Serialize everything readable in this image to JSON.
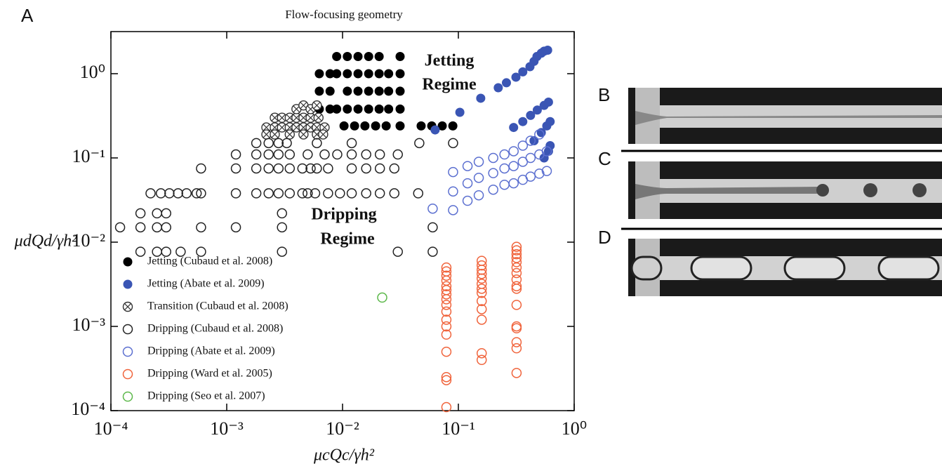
{
  "figure": {
    "panel_labels": [
      "A",
      "B",
      "C",
      "D"
    ]
  },
  "chart_data": {
    "type": "scatter",
    "title": "Flow-focusing geometry",
    "x_label": "μcQc/γh²",
    "y_label": "μdQd/γh²",
    "log_x": true,
    "log_y": true,
    "legend": "lower left",
    "annotations": [
      "Jetting",
      "Regime",
      "Dripping",
      "Regime"
    ],
    "xlim": [
      0.0001,
      1
    ],
    "ylim": [
      0.0001,
      3.16
    ],
    "xticks": [
      {
        "value": 0.0001,
        "label": "10⁻⁴"
      },
      {
        "value": 0.001,
        "label": "10⁻³"
      },
      {
        "value": 0.01,
        "label": "10⁻²"
      },
      {
        "value": 0.1,
        "label": "10⁻¹"
      },
      {
        "value": 1,
        "label": "10⁰"
      }
    ],
    "yticks": [
      {
        "value": 0.0001,
        "label": "10⁻⁴"
      },
      {
        "value": 0.001,
        "label": "10⁻³"
      },
      {
        "value": 0.01,
        "label": "10⁻²"
      },
      {
        "value": 0.1,
        "label": "10⁻¹"
      },
      {
        "value": 1,
        "label": "10⁰"
      }
    ],
    "series": [
      {
        "name": "Jetting (Cubaud et al. 2008)",
        "color": "#000000",
        "marker": "filled",
        "x": [
          0.0089,
          0.011,
          0.0136,
          0.0168,
          0.0207,
          0.0314,
          0.0063,
          0.0078,
          0.0089,
          0.011,
          0.0136,
          0.0168,
          0.0207,
          0.025,
          0.0314,
          0.0063,
          0.0078,
          0.011,
          0.0136,
          0.0168,
          0.0207,
          0.025,
          0.0314,
          0.0063,
          0.0078,
          0.0089,
          0.011,
          0.0136,
          0.0168,
          0.0207,
          0.025,
          0.0314,
          0.0103,
          0.0127,
          0.0156,
          0.0193,
          0.0238,
          0.0314,
          0.0477,
          0.0589,
          0.0726,
          0.0896
        ],
        "values": [
          1.6,
          1.6,
          1.6,
          1.6,
          1.6,
          1.6,
          1.0,
          1.0,
          1.0,
          1.0,
          1.0,
          1.0,
          1.0,
          1.0,
          1.0,
          0.62,
          0.62,
          0.62,
          0.62,
          0.62,
          0.62,
          0.62,
          0.62,
          0.38,
          0.38,
          0.38,
          0.38,
          0.38,
          0.38,
          0.38,
          0.38,
          0.38,
          0.24,
          0.24,
          0.24,
          0.24,
          0.24,
          0.24,
          0.24,
          0.24,
          0.24,
          0.24
        ]
      },
      {
        "name": "Jetting (Abate et al. 2009)",
        "color": "#3a55b4",
        "marker": "filled",
        "x": [
          0.063,
          0.103,
          0.156,
          0.221,
          0.26,
          0.314,
          0.36,
          0.415,
          0.45,
          0.477,
          0.52,
          0.55,
          0.59,
          0.3,
          0.36,
          0.42,
          0.48,
          0.55,
          0.6,
          0.45,
          0.52,
          0.58,
          0.62,
          0.55,
          0.6,
          0.62
        ],
        "values": [
          0.215,
          0.348,
          0.511,
          0.681,
          0.78,
          0.909,
          1.05,
          1.21,
          1.4,
          1.6,
          1.75,
          1.85,
          1.9,
          0.23,
          0.27,
          0.32,
          0.37,
          0.42,
          0.46,
          0.16,
          0.2,
          0.24,
          0.27,
          0.1,
          0.12,
          0.14
        ]
      },
      {
        "name": "Transition (Cubaud et al. 2008)",
        "color": "#333333",
        "marker": "crossed",
        "x": [
          0.0022,
          0.0026,
          0.003,
          0.0035,
          0.004,
          0.0046,
          0.0053,
          0.006,
          0.007,
          0.0026,
          0.003,
          0.0035,
          0.004,
          0.0046,
          0.0053,
          0.0062,
          0.0022,
          0.0026,
          0.0035,
          0.0046,
          0.006,
          0.0068,
          0.004,
          0.0046,
          0.0053,
          0.006
        ],
        "values": [
          0.23,
          0.23,
          0.23,
          0.23,
          0.23,
          0.23,
          0.23,
          0.23,
          0.23,
          0.3,
          0.3,
          0.3,
          0.3,
          0.3,
          0.3,
          0.3,
          0.19,
          0.19,
          0.19,
          0.19,
          0.19,
          0.19,
          0.38,
          0.42,
          0.38,
          0.42
        ]
      },
      {
        "name": "Dripping (Cubaud et al. 2008)",
        "color": "#222222",
        "marker": "open",
        "x": [
          0.00018,
          0.00025,
          0.0003,
          0.0004,
          0.0006,
          0.003,
          0.03,
          0.06,
          0.00012,
          0.00018,
          0.00025,
          0.0003,
          0.0006,
          0.0012,
          0.003,
          0.06,
          0.00018,
          0.00025,
          0.0003,
          0.003,
          0.00022,
          0.00027,
          0.00032,
          0.00038,
          0.00045,
          0.00055,
          0.0006,
          0.0012,
          0.0018,
          0.0023,
          0.0028,
          0.0035,
          0.0045,
          0.005,
          0.0058,
          0.0075,
          0.0095,
          0.012,
          0.016,
          0.021,
          0.028,
          0.045,
          0.0006,
          0.0012,
          0.0018,
          0.0023,
          0.0028,
          0.0035,
          0.0045,
          0.0053,
          0.006,
          0.0075,
          0.012,
          0.016,
          0.021,
          0.028,
          0.0012,
          0.0018,
          0.0023,
          0.0028,
          0.0035,
          0.005,
          0.007,
          0.009,
          0.012,
          0.016,
          0.021,
          0.03,
          0.0018,
          0.0023,
          0.0028,
          0.0033,
          0.006,
          0.012,
          0.046,
          0.09
        ],
        "values": [
          0.0077,
          0.0077,
          0.0077,
          0.0077,
          0.0077,
          0.0077,
          0.0077,
          0.0077,
          0.015,
          0.015,
          0.015,
          0.015,
          0.015,
          0.015,
          0.015,
          0.015,
          0.022,
          0.022,
          0.022,
          0.022,
          0.038,
          0.038,
          0.038,
          0.038,
          0.038,
          0.038,
          0.038,
          0.038,
          0.038,
          0.038,
          0.038,
          0.038,
          0.038,
          0.038,
          0.038,
          0.038,
          0.038,
          0.038,
          0.038,
          0.038,
          0.038,
          0.038,
          0.075,
          0.075,
          0.075,
          0.075,
          0.075,
          0.075,
          0.075,
          0.075,
          0.075,
          0.075,
          0.075,
          0.075,
          0.075,
          0.075,
          0.11,
          0.11,
          0.11,
          0.11,
          0.11,
          0.11,
          0.11,
          0.11,
          0.11,
          0.11,
          0.11,
          0.11,
          0.15,
          0.15,
          0.15,
          0.15,
          0.15,
          0.15,
          0.15,
          0.15
        ]
      },
      {
        "name": "Dripping (Abate et al. 2009)",
        "color": "#5b6fd0",
        "marker": "open",
        "x": [
          0.06,
          0.09,
          0.09,
          0.09,
          0.12,
          0.12,
          0.12,
          0.15,
          0.15,
          0.15,
          0.2,
          0.2,
          0.2,
          0.25,
          0.25,
          0.25,
          0.3,
          0.3,
          0.3,
          0.36,
          0.36,
          0.36,
          0.42,
          0.42,
          0.42,
          0.5,
          0.5,
          0.5,
          0.58,
          0.58
        ],
        "values": [
          0.025,
          0.024,
          0.04,
          0.068,
          0.031,
          0.05,
          0.08,
          0.036,
          0.058,
          0.09,
          0.042,
          0.066,
          0.1,
          0.048,
          0.075,
          0.11,
          0.05,
          0.08,
          0.12,
          0.055,
          0.09,
          0.14,
          0.06,
          0.1,
          0.16,
          0.065,
          0.11,
          0.19,
          0.07,
          0.12
        ]
      },
      {
        "name": "Dripping (Ward et al. 2005)",
        "color": "#f0643c",
        "marker": "open",
        "x": [
          0.0788,
          0.0788,
          0.0788,
          0.0788,
          0.0788,
          0.0788,
          0.0788,
          0.0788,
          0.0788,
          0.0788,
          0.0788,
          0.0788,
          0.0788,
          0.0788,
          0.0788,
          0.0788,
          0.0788,
          0.159,
          0.159,
          0.159,
          0.159,
          0.159,
          0.159,
          0.159,
          0.159,
          0.159,
          0.159,
          0.159,
          0.159,
          0.159,
          0.318,
          0.318,
          0.318,
          0.318,
          0.318,
          0.318,
          0.318,
          0.318,
          0.318,
          0.318,
          0.318,
          0.318,
          0.318,
          0.318,
          0.318,
          0.318
        ],
        "values": [
          0.005,
          0.0045,
          0.004,
          0.0035,
          0.003,
          0.0027,
          0.0024,
          0.0021,
          0.0018,
          0.0015,
          0.0012,
          0.001,
          0.0008,
          0.0005,
          0.00025,
          0.00023,
          0.00011,
          0.006,
          0.0053,
          0.0047,
          0.0042,
          0.0037,
          0.0032,
          0.0028,
          0.0025,
          0.002,
          0.0016,
          0.0012,
          0.00048,
          0.0004,
          0.0088,
          0.008,
          0.0072,
          0.0065,
          0.0058,
          0.005,
          0.0043,
          0.0036,
          0.003,
          0.0028,
          0.0018,
          0.001,
          0.00095,
          0.00065,
          0.00055,
          0.00028
        ]
      },
      {
        "name": "Dripping (Seo et al. 2007)",
        "color": "#5cb84a",
        "marker": "open",
        "x": [
          0.022
        ],
        "values": [
          0.0022
        ]
      }
    ]
  }
}
